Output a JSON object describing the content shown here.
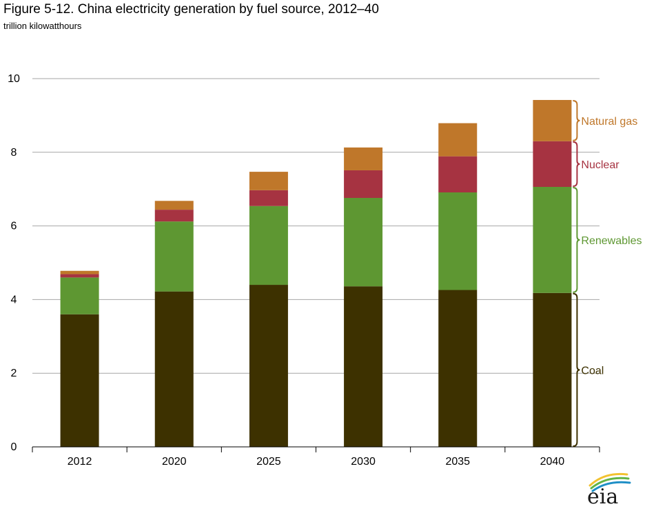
{
  "chart_data": {
    "type": "bar",
    "stacked": true,
    "title": "Figure 5-12. China electricity generation by fuel source, 2012–40",
    "subtitle": "trillion kilowatthours",
    "categories": [
      "2012",
      "2020",
      "2025",
      "2030",
      "2035",
      "2040"
    ],
    "ylim": [
      0,
      10
    ],
    "yticks": [
      0,
      2,
      4,
      6,
      8,
      10
    ],
    "grid": true,
    "legend_placement": "right",
    "series": [
      {
        "name": "Coal",
        "color": "#3d3100",
        "values": [
          3.6,
          4.22,
          4.4,
          4.36,
          4.26,
          4.18
        ]
      },
      {
        "name": "Renewables",
        "color": "#5e9732",
        "values": [
          1.0,
          1.9,
          2.14,
          2.4,
          2.65,
          2.88
        ]
      },
      {
        "name": "Nuclear",
        "color": "#a63341",
        "values": [
          0.09,
          0.32,
          0.43,
          0.75,
          0.98,
          1.24
        ]
      },
      {
        "name": "Natural gas",
        "color": "#bf772a",
        "values": [
          0.09,
          0.24,
          0.5,
          0.62,
          0.9,
          1.12
        ]
      }
    ],
    "brace_colors": {
      "Coal": "#3d3100",
      "Renewables": "#5e9732",
      "Nuclear": "#a63341",
      "Natural gas": "#bf772a"
    }
  },
  "logo": {
    "text": "eia",
    "colors": [
      "#f2c230",
      "#63b446",
      "#1f8fc6"
    ]
  }
}
